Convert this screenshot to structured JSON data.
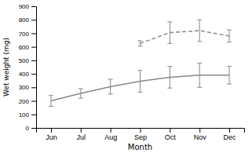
{
  "chart_data": {
    "type": "line",
    "xlabel": "Month",
    "ylabel": "Wet weight (mg)",
    "categories": [
      "Jun",
      "Jul",
      "Aug",
      "Sep",
      "Oct",
      "Nov",
      "Dec"
    ],
    "series": [
      {
        "color": "#888888",
        "line_style": "solid",
        "values": [
          200,
          255,
          305,
          345,
          375,
          390,
          390
        ],
        "errors": [
          40,
          35,
          55,
          80,
          80,
          90,
          65
        ]
      },
      {
        "color": "#888888",
        "line_style": "dashed",
        "values": [
          null,
          null,
          null,
          625,
          705,
          720,
          680
        ],
        "errors": [
          null,
          null,
          null,
          20,
          80,
          80,
          45
        ]
      }
    ],
    "ylim": [
      0,
      900
    ],
    "yticks": [
      0,
      100,
      200,
      300,
      400,
      500,
      600,
      700,
      800,
      900
    ],
    "grid": false
  }
}
